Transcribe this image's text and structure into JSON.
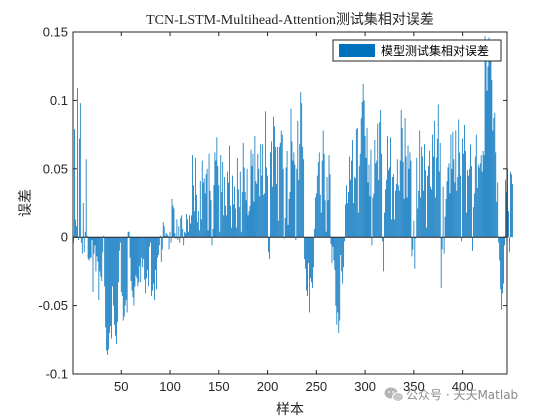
{
  "chart_data": {
    "type": "bar",
    "title": "TCN-LSTM-Multihead-Attention测试集相对误差",
    "xlabel": "样本",
    "ylabel": "误差",
    "xlim": [
      1,
      445
    ],
    "ylim": [
      -0.1,
      0.15
    ],
    "xticks": [
      50,
      100,
      150,
      200,
      250,
      300,
      350,
      400
    ],
    "yticks": [
      -0.1,
      -0.05,
      0,
      0.05,
      0.1,
      0.15
    ],
    "ytick_labels": [
      "-0.1",
      "-0.05",
      "0",
      "0.05",
      "0.1",
      "0.15"
    ],
    "grid": false,
    "legend_position": "top-right",
    "series": [
      {
        "name": "模型测试集相对误差",
        "color": "#0072BD",
        "values": [
          -0.004,
          0.079,
          0.013,
          0.008,
          0.109,
          -0.002,
          0.072,
          0.098,
          -0.004,
          -0.012,
          0.025,
          -0.011,
          0.004,
          0.057,
          0.001,
          -0.016,
          -0.017,
          -0.015,
          -0.015,
          -0.002,
          -0.04,
          -0.012,
          -0.006,
          -0.025,
          -0.014,
          -0.018,
          -0.046,
          -0.025,
          -0.029,
          -0.032,
          -0.011,
          0.001,
          -0.036,
          -0.066,
          -0.083,
          -0.086,
          -0.082,
          -0.07,
          -0.065,
          -0.074,
          -0.036,
          -0.05,
          -0.064,
          -0.072,
          -0.078,
          -0.062,
          -0.033,
          -0.01,
          -0.004,
          -0.04,
          -0.043,
          -0.061,
          -0.058,
          -0.05,
          -0.046,
          -0.055,
          0.004,
          0.004,
          -0.015,
          -0.032,
          -0.039,
          -0.044,
          -0.05,
          -0.036,
          -0.028,
          -0.03,
          -0.036,
          -0.033,
          -0.021,
          -0.033,
          -0.015,
          -0.022,
          -0.016,
          -0.031,
          -0.041,
          -0.03,
          -0.024,
          -0.036,
          -0.007,
          -0.004,
          -0.043,
          -0.039,
          -0.034,
          -0.046,
          -0.024,
          -0.038,
          -0.015,
          -0.013,
          -0.006,
          0.001,
          -0.018,
          -0.009,
          0.011,
          0.008,
          0.001,
          0.003,
          0.002,
          0.001,
          -0.009,
          0.004,
          -0.004,
          0.028,
          0.023,
          0.021,
          0.003,
          -0.001,
          0.013,
          -0.002,
          0.008,
          -0.004,
          0.014,
          0.016,
          0.006,
          -0.006,
          0.004,
          0.003,
          0.017,
          0.013,
          0.004,
          0.016,
          0.01,
          0.016,
          0.06,
          0.038,
          0.019,
          0.058,
          0.031,
          0.011,
          0.019,
          0.005,
          0.041,
          0.013,
          0.056,
          0.04,
          0.043,
          0.032,
          0.046,
          0.05,
          0.005,
          0.061,
          0.034,
          0.027,
          -0.006,
          0.006,
          0.038,
          0.062,
          0.056,
          0.073,
          0.052,
          0.038,
          0.004,
          0.06,
          0.033,
          0.055,
          0.016,
          0.044,
          0.023,
          0.016,
          0.048,
          0.04,
          0.067,
          0.023,
          0.007,
          0.045,
          0.024,
          0.037,
          0.021,
          0.007,
          0.058,
          0.035,
          0.022,
          0.048,
          0.004,
          0.033,
          0.069,
          0.051,
          0.033,
          0.027,
          0.05,
          0.016,
          0.019,
          0.023,
          0.064,
          0.052,
          0.061,
          0.026,
          0.074,
          0.041,
          0.039,
          0.061,
          0.05,
          0.03,
          0.068,
          0.045,
          0.068,
          0.031,
          0.032,
          0.092,
          0.051,
          0.045,
          -0.011,
          -0.016,
          0.062,
          0.07,
          0.037,
          0.088,
          0.081,
          0.066,
          0.039,
          0.066,
          0.012,
          0.066,
          0.069,
          0.078,
          0.075,
          0.05,
          -0.001,
          0.014,
          0.051,
          0.063,
          0.009,
          0.028,
          0.033,
          0.094,
          0.07,
          0.056,
          0.062,
          0.053,
          -0.002,
          0.05,
          0.085,
          0.042,
          0.068,
          0.106,
          0.098,
          0.066,
          0.057,
          -0.016,
          -0.023,
          -0.039,
          -0.043,
          -0.019,
          -0.055,
          -0.03,
          -0.033,
          -0.037,
          -0.022,
          0.006,
          0.029,
          0.032,
          0.045,
          0.055,
          0.062,
          0.031,
          0.018,
          0.056,
          0.078,
          0.061,
          0.027,
          0.004,
          0.044,
          0.027,
          0.06,
          0.046,
          -0.005,
          -0.019,
          -0.007,
          -0.017,
          -0.024,
          -0.05,
          -0.064,
          -0.055,
          -0.07,
          -0.061,
          -0.013,
          -0.025,
          -0.034,
          -0.022,
          -0.003,
          0.024,
          0.038,
          0.025,
          0.033,
          0.059,
          0.042,
          0.056,
          0.071,
          0.025,
          0.044,
          0.043,
          0.079,
          0.08,
          0.018,
          0.052,
          0.061,
          0.087,
          0.099,
          0.112,
          0.1,
          0.074,
          0.058,
          0.08,
          0.04,
          0.053,
          0.03,
          0.064,
          -0.006,
          0.029,
          0.032,
          0.071,
          0.054,
          0.056,
          0.083,
          0.042,
          0.084,
          0.093,
          0.061,
          -0.003,
          -0.025,
          0.018,
          0.035,
          0.042,
          0.074,
          0.049,
          0.051,
          0.073,
          0.013,
          0.044,
          0.046,
          0.013,
          0.034,
          0.039,
          0.057,
          0.038,
          0.034,
          0.056,
          0.093,
          0.08,
          0.055,
          0.028,
          0.087,
          0.059,
          0.029,
          0.067,
          0.05,
          0.062,
          0.056,
          -0.014,
          -0.009,
          0.012,
          -0.023,
          -0.001,
          0.058,
          0.021,
          0.034,
          0.078,
          0.029,
          0.066,
          0.059,
          0.034,
          0.068,
          0.049,
          0.007,
          0.045,
          0.052,
          0.063,
          0.037,
          0.035,
          0.075,
          0.059,
          0.085,
          0.029,
          0.058,
          0.072,
          0.097,
          0.048,
          0.069,
          -0.037,
          -0.009,
          0.037,
          -0.012,
          0.015,
          0.028,
          0.041,
          0.051,
          0.054,
          0.032,
          0.075,
          0.05,
          0.077,
          0.057,
          0.04,
          0.078,
          0.034,
          0.044,
          0.086,
          0.062,
          0.045,
          -0.003,
          0.072,
          0.061,
          0.082,
          0.063,
          0.018,
          0.049,
          0.045,
          0.05,
          0.068,
          0.052,
          -0.01,
          0.022,
          0.032,
          0.059,
          0.075,
          0.036,
          0.053,
          0.051,
          0.054,
          0.06,
          0.048,
          0.063,
          0.06,
          0.147,
          0.138,
          0.107,
          0.125,
          0.146,
          0.131,
          0.14,
          0.115,
          0.078,
          0.087,
          0.091,
          0.062,
          0.026,
          0.04,
          -0.004,
          -0.017,
          -0.038,
          -0.053,
          -0.041,
          -0.034,
          -0.006,
          0.042,
          0.033,
          0.05,
          0.019,
          -0.011,
          0.048,
          0.046,
          0.039
        ]
      }
    ]
  },
  "watermark": {
    "text": "公众号 · 天天Matlab",
    "icon": "wechat-icon"
  }
}
